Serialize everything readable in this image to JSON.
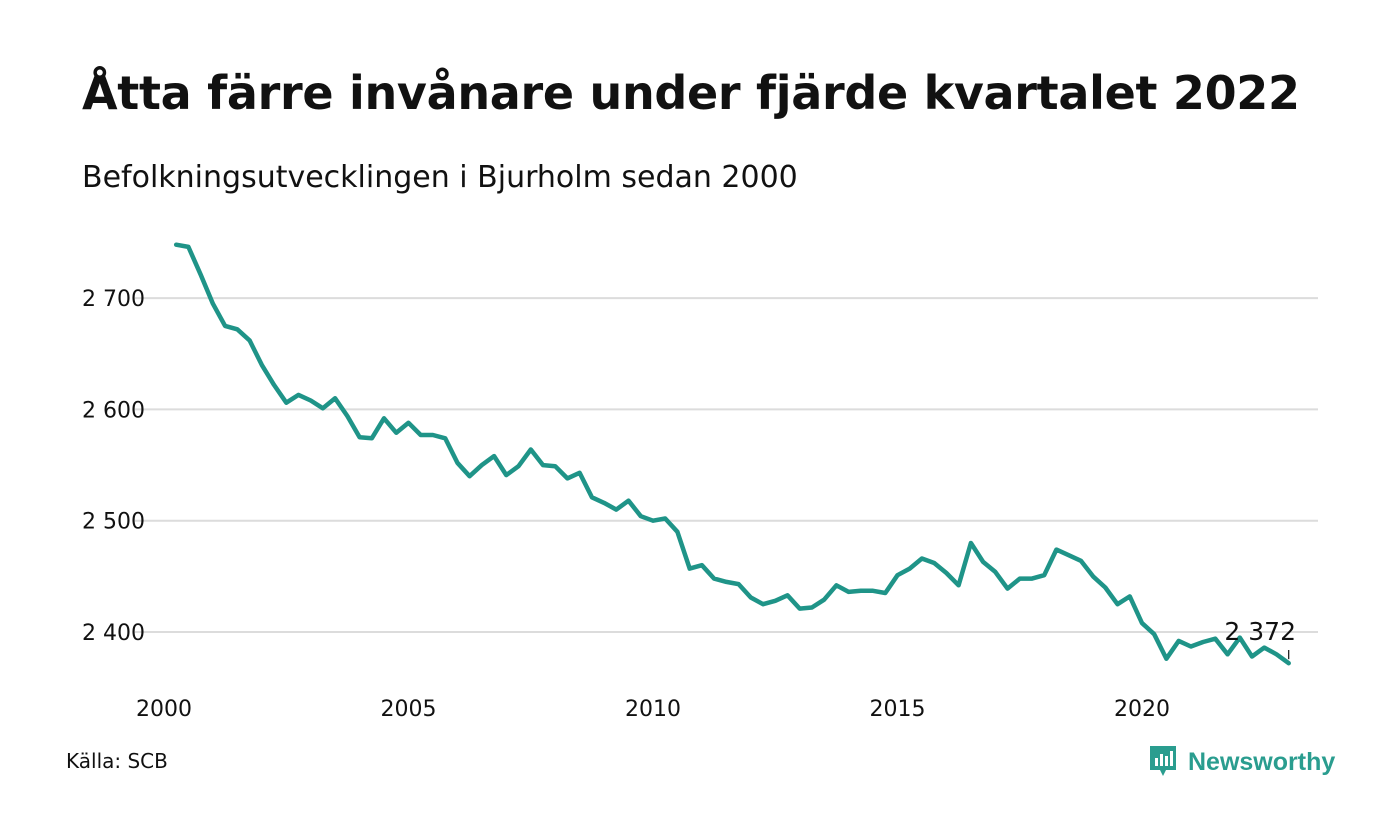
{
  "title": "Åtta färre invånare under fjärde kvartalet 2022",
  "subtitle": "Befolkningsutvecklingen i Bjurholm sedan 2000",
  "source": "Källa: SCB",
  "brand": {
    "name": "Newsworthy",
    "logo_icon": "newsworthy-bar-chart-icon",
    "color": "#2a9d8f"
  },
  "colors": {
    "line": "#1f9488",
    "grid": "#dcdcdc",
    "text": "#111111"
  },
  "chart_data": {
    "type": "line",
    "title": "Åtta färre invånare under fjärde kvartalet 2022",
    "subtitle": "Befolkningsutvecklingen i Bjurholm sedan 2000",
    "xlabel": "",
    "ylabel": "",
    "x_ticks": [
      "2000",
      "2005",
      "2010",
      "2015",
      "2020"
    ],
    "y_ticks": [
      2400,
      2500,
      2600,
      2700
    ],
    "y_tick_labels": [
      "2 400",
      "2 500",
      "2 600",
      "2 700"
    ],
    "xlim": [
      2000,
      2023.25
    ],
    "ylim": [
      2350,
      2750
    ],
    "grid": "horizontal",
    "end_label": "2 372",
    "series": [
      {
        "color": "#1f9488",
        "x": [
          2000.25,
          2000.5,
          2000.75,
          2001,
          2001.25,
          2001.5,
          2001.75,
          2002,
          2002.25,
          2002.5,
          2002.75,
          2003,
          2003.25,
          2003.5,
          2003.75,
          2004,
          2004.25,
          2004.5,
          2004.75,
          2005,
          2005.25,
          2005.5,
          2005.75,
          2006,
          2006.25,
          2006.5,
          2006.75,
          2007,
          2007.25,
          2007.5,
          2007.75,
          2008,
          2008.25,
          2008.5,
          2008.75,
          2009,
          2009.25,
          2009.5,
          2009.75,
          2010,
          2010.25,
          2010.5,
          2010.75,
          2011,
          2011.25,
          2011.5,
          2011.75,
          2012,
          2012.25,
          2012.5,
          2012.75,
          2013,
          2013.25,
          2013.5,
          2013.75,
          2014,
          2014.25,
          2014.5,
          2014.75,
          2015,
          2015.25,
          2015.5,
          2015.75,
          2016,
          2016.25,
          2016.5,
          2016.75,
          2017,
          2017.25,
          2017.5,
          2017.75,
          2018,
          2018.25,
          2018.5,
          2018.75,
          2019,
          2019.25,
          2019.5,
          2019.75,
          2020,
          2020.25,
          2020.5,
          2020.75,
          2021,
          2021.25,
          2021.5,
          2021.75,
          2022,
          2022.25,
          2022.5,
          2022.75,
          2023
        ],
        "y": [
          2748,
          2746,
          2721,
          2695,
          2675,
          2672,
          2662,
          2640,
          2622,
          2606,
          2613,
          2608,
          2601,
          2610,
          2594,
          2575,
          2574,
          2592,
          2579,
          2588,
          2577,
          2577,
          2574,
          2552,
          2540,
          2550,
          2558,
          2541,
          2549,
          2564,
          2550,
          2549,
          2538,
          2543,
          2521,
          2516,
          2510,
          2518,
          2504,
          2500,
          2502,
          2490,
          2457,
          2460,
          2448,
          2445,
          2443,
          2431,
          2425,
          2428,
          2433,
          2421,
          2422,
          2429,
          2442,
          2436,
          2437,
          2437,
          2435,
          2451,
          2457,
          2466,
          2462,
          2453,
          2442,
          2480,
          2463,
          2454,
          2439,
          2448,
          2448,
          2451,
          2474,
          2469,
          2464,
          2450,
          2440,
          2425,
          2432,
          2408,
          2398,
          2376,
          2392,
          2387,
          2391,
          2394,
          2380,
          2395,
          2378,
          2386,
          2380,
          2372
        ]
      }
    ]
  }
}
